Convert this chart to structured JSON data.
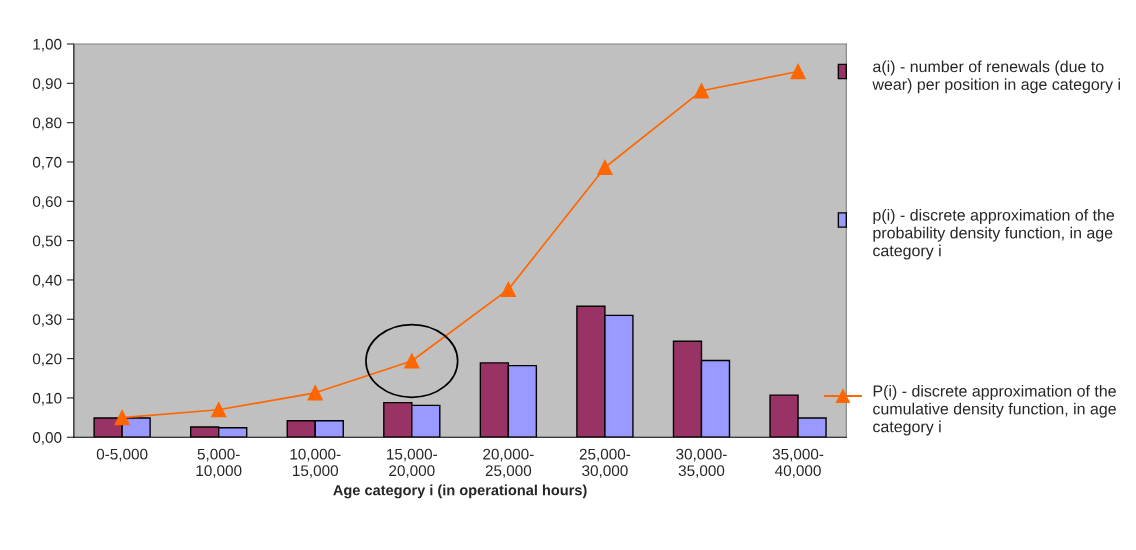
{
  "chart_data": {
    "type": "bar",
    "xlabel": "Age category i (in operational hours)",
    "categories": [
      "0-5,000",
      "5,000-\n10,000",
      "10,000-\n15,000",
      "15,000-\n20,000",
      "20,000-\n25,000",
      "25,000-\n30,000",
      "30,000-\n35,000",
      "35,000-\n40,000"
    ],
    "series": [
      {
        "name": "a(i) - number of renewals (due to wear) per position in age category i",
        "color": "#993366",
        "values": [
          0.049,
          0.026,
          0.042,
          0.088,
          0.189,
          0.333,
          0.244,
          0.107
        ]
      },
      {
        "name": "p(i) - discrete approximation of the probability density function, in age category i",
        "color": "#9999ff",
        "values": [
          0.049,
          0.024,
          0.042,
          0.081,
          0.182,
          0.31,
          0.195,
          0.049
        ]
      },
      {
        "name": "P(i) - discrete approximation of the cumulative density function, in age category i",
        "color": "#ff6600",
        "type": "line",
        "marker": "triangle",
        "values": [
          0.05,
          0.07,
          0.113,
          0.194,
          0.376,
          0.686,
          0.881,
          0.93
        ]
      }
    ],
    "ylim": [
      0,
      1
    ],
    "yticks": [
      {
        "value": 0,
        "label": "0,00"
      },
      {
        "value": 0.1,
        "label": "0,10"
      },
      {
        "value": 0.2,
        "label": "0,20"
      },
      {
        "value": 0.3,
        "label": "0,30"
      },
      {
        "value": 0.4,
        "label": "0,40"
      },
      {
        "value": 0.5,
        "label": "0,50"
      },
      {
        "value": 0.6,
        "label": "0,60"
      },
      {
        "value": 0.7,
        "label": "0,70"
      },
      {
        "value": 0.8,
        "label": "0,80"
      },
      {
        "value": 0.9,
        "label": "0,90"
      },
      {
        "value": 1,
        "label": "1,00"
      }
    ],
    "grid": false,
    "legend": "right"
  }
}
